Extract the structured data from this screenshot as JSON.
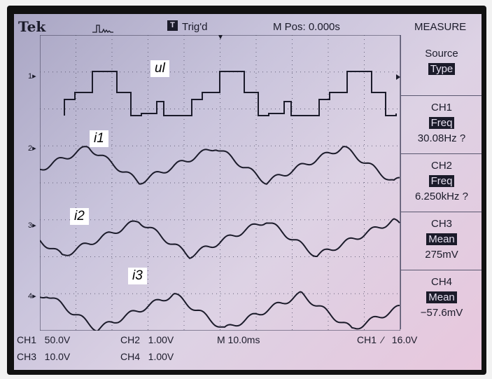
{
  "header": {
    "brand": "Tek",
    "trigger_state": "Trig'd",
    "trigger_icon": "T",
    "position": "M Pos: 0.000s",
    "menu_title": "MEASURE"
  },
  "measure_panel": {
    "source": {
      "line1": "Source",
      "line2": "Type"
    },
    "measurements": [
      {
        "channel": "CH1",
        "type": "Freq",
        "value": "30.08Hz ?"
      },
      {
        "channel": "CH2",
        "type": "Freq",
        "value": "6.250kHz ?"
      },
      {
        "channel": "CH3",
        "type": "Mean",
        "value": "275mV"
      },
      {
        "channel": "CH4",
        "type": "Mean",
        "value": "−57.6mV"
      }
    ]
  },
  "channel_markers": [
    "1",
    "2",
    "3",
    "4"
  ],
  "trace_labels": [
    "ul",
    "i1",
    "i2",
    "i3"
  ],
  "status_bar": {
    "ch1_scale": "CH1   50.0V",
    "ch2_scale": "CH2   1.00V",
    "ch3_scale": "CH3   10.0V",
    "ch4_scale": "CH4   1.00V",
    "timebase": "M 10.0ms",
    "trigger": "CH1  ⁄   16.0V"
  },
  "colors": {
    "screen": "#c9c4dc",
    "trace": "#1b1b2a",
    "highlight": "#1b1b2a"
  }
}
